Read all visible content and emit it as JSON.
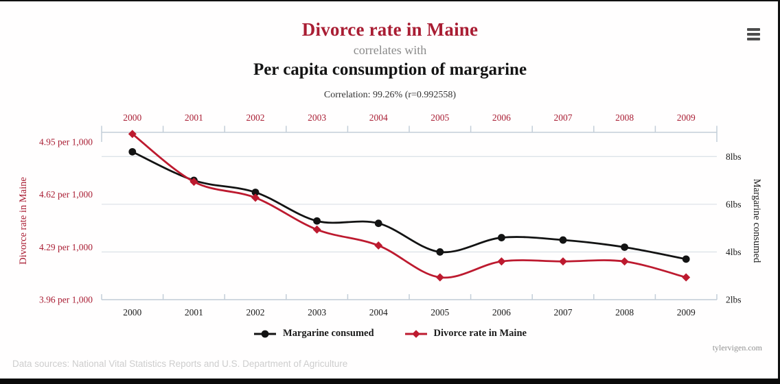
{
  "header": {
    "title_primary": "Divorce rate in Maine",
    "connector": "correlates with",
    "title_secondary": "Per capita consumption of margarine",
    "correlation_text": "Correlation: 99.26% (r=0.992558)"
  },
  "menu": {
    "icon": "hamburger-menu-icon"
  },
  "footer": {
    "data_sources": "Data sources: National Vital Statistics Reports and U.S. Department of Agriculture",
    "watermark": "tylervigen.com"
  },
  "colors": {
    "accent_red_text": "#a91d33",
    "line_red": "#bd1a2f",
    "line_black": "#131313",
    "grid": "#dde3e8",
    "axis": "#c3ced8",
    "muted_gray": "#8a8a8a",
    "footer_gray": "#cdcdcd"
  },
  "chart_data": {
    "type": "line",
    "title": "Divorce rate in Maine correlates with Per capita consumption of margarine",
    "x": [
      2000,
      2001,
      2002,
      2003,
      2004,
      2005,
      2006,
      2007,
      2008,
      2009
    ],
    "series": [
      {
        "name": "Margarine consumed",
        "axis": "right",
        "color": "#131313",
        "marker": "circle",
        "unit": "lbs",
        "values": [
          8.2,
          7.0,
          6.5,
          5.3,
          5.2,
          4.0,
          4.6,
          4.5,
          4.2,
          3.7
        ]
      },
      {
        "name": "Divorce rate in Maine",
        "axis": "left",
        "color": "#bd1a2f",
        "marker": "diamond",
        "unit": "per 1,000",
        "values": [
          5.0,
          4.7,
          4.6,
          4.4,
          4.3,
          4.1,
          4.2,
          4.2,
          4.2,
          4.1
        ]
      }
    ],
    "left_axis": {
      "title": "Divorce rate in Maine",
      "tick_values": [
        4.95,
        4.62,
        4.29,
        3.96
      ],
      "tick_labels": [
        "4.95 per 1,000",
        "4.62 per 1,000",
        "4.29 per 1,000",
        "3.96 per 1,000"
      ]
    },
    "right_axis": {
      "title": "Margarine consumed",
      "tick_values": [
        8,
        6,
        4,
        2
      ],
      "tick_labels": [
        "8lbs",
        "6lbs",
        "4lbs",
        "2lbs"
      ]
    },
    "layout_hints": {
      "grid": "horizontal-only",
      "legend_position": "bottom-center",
      "top_x_axis_color": "red",
      "bottom_x_axis_color": "black"
    }
  }
}
